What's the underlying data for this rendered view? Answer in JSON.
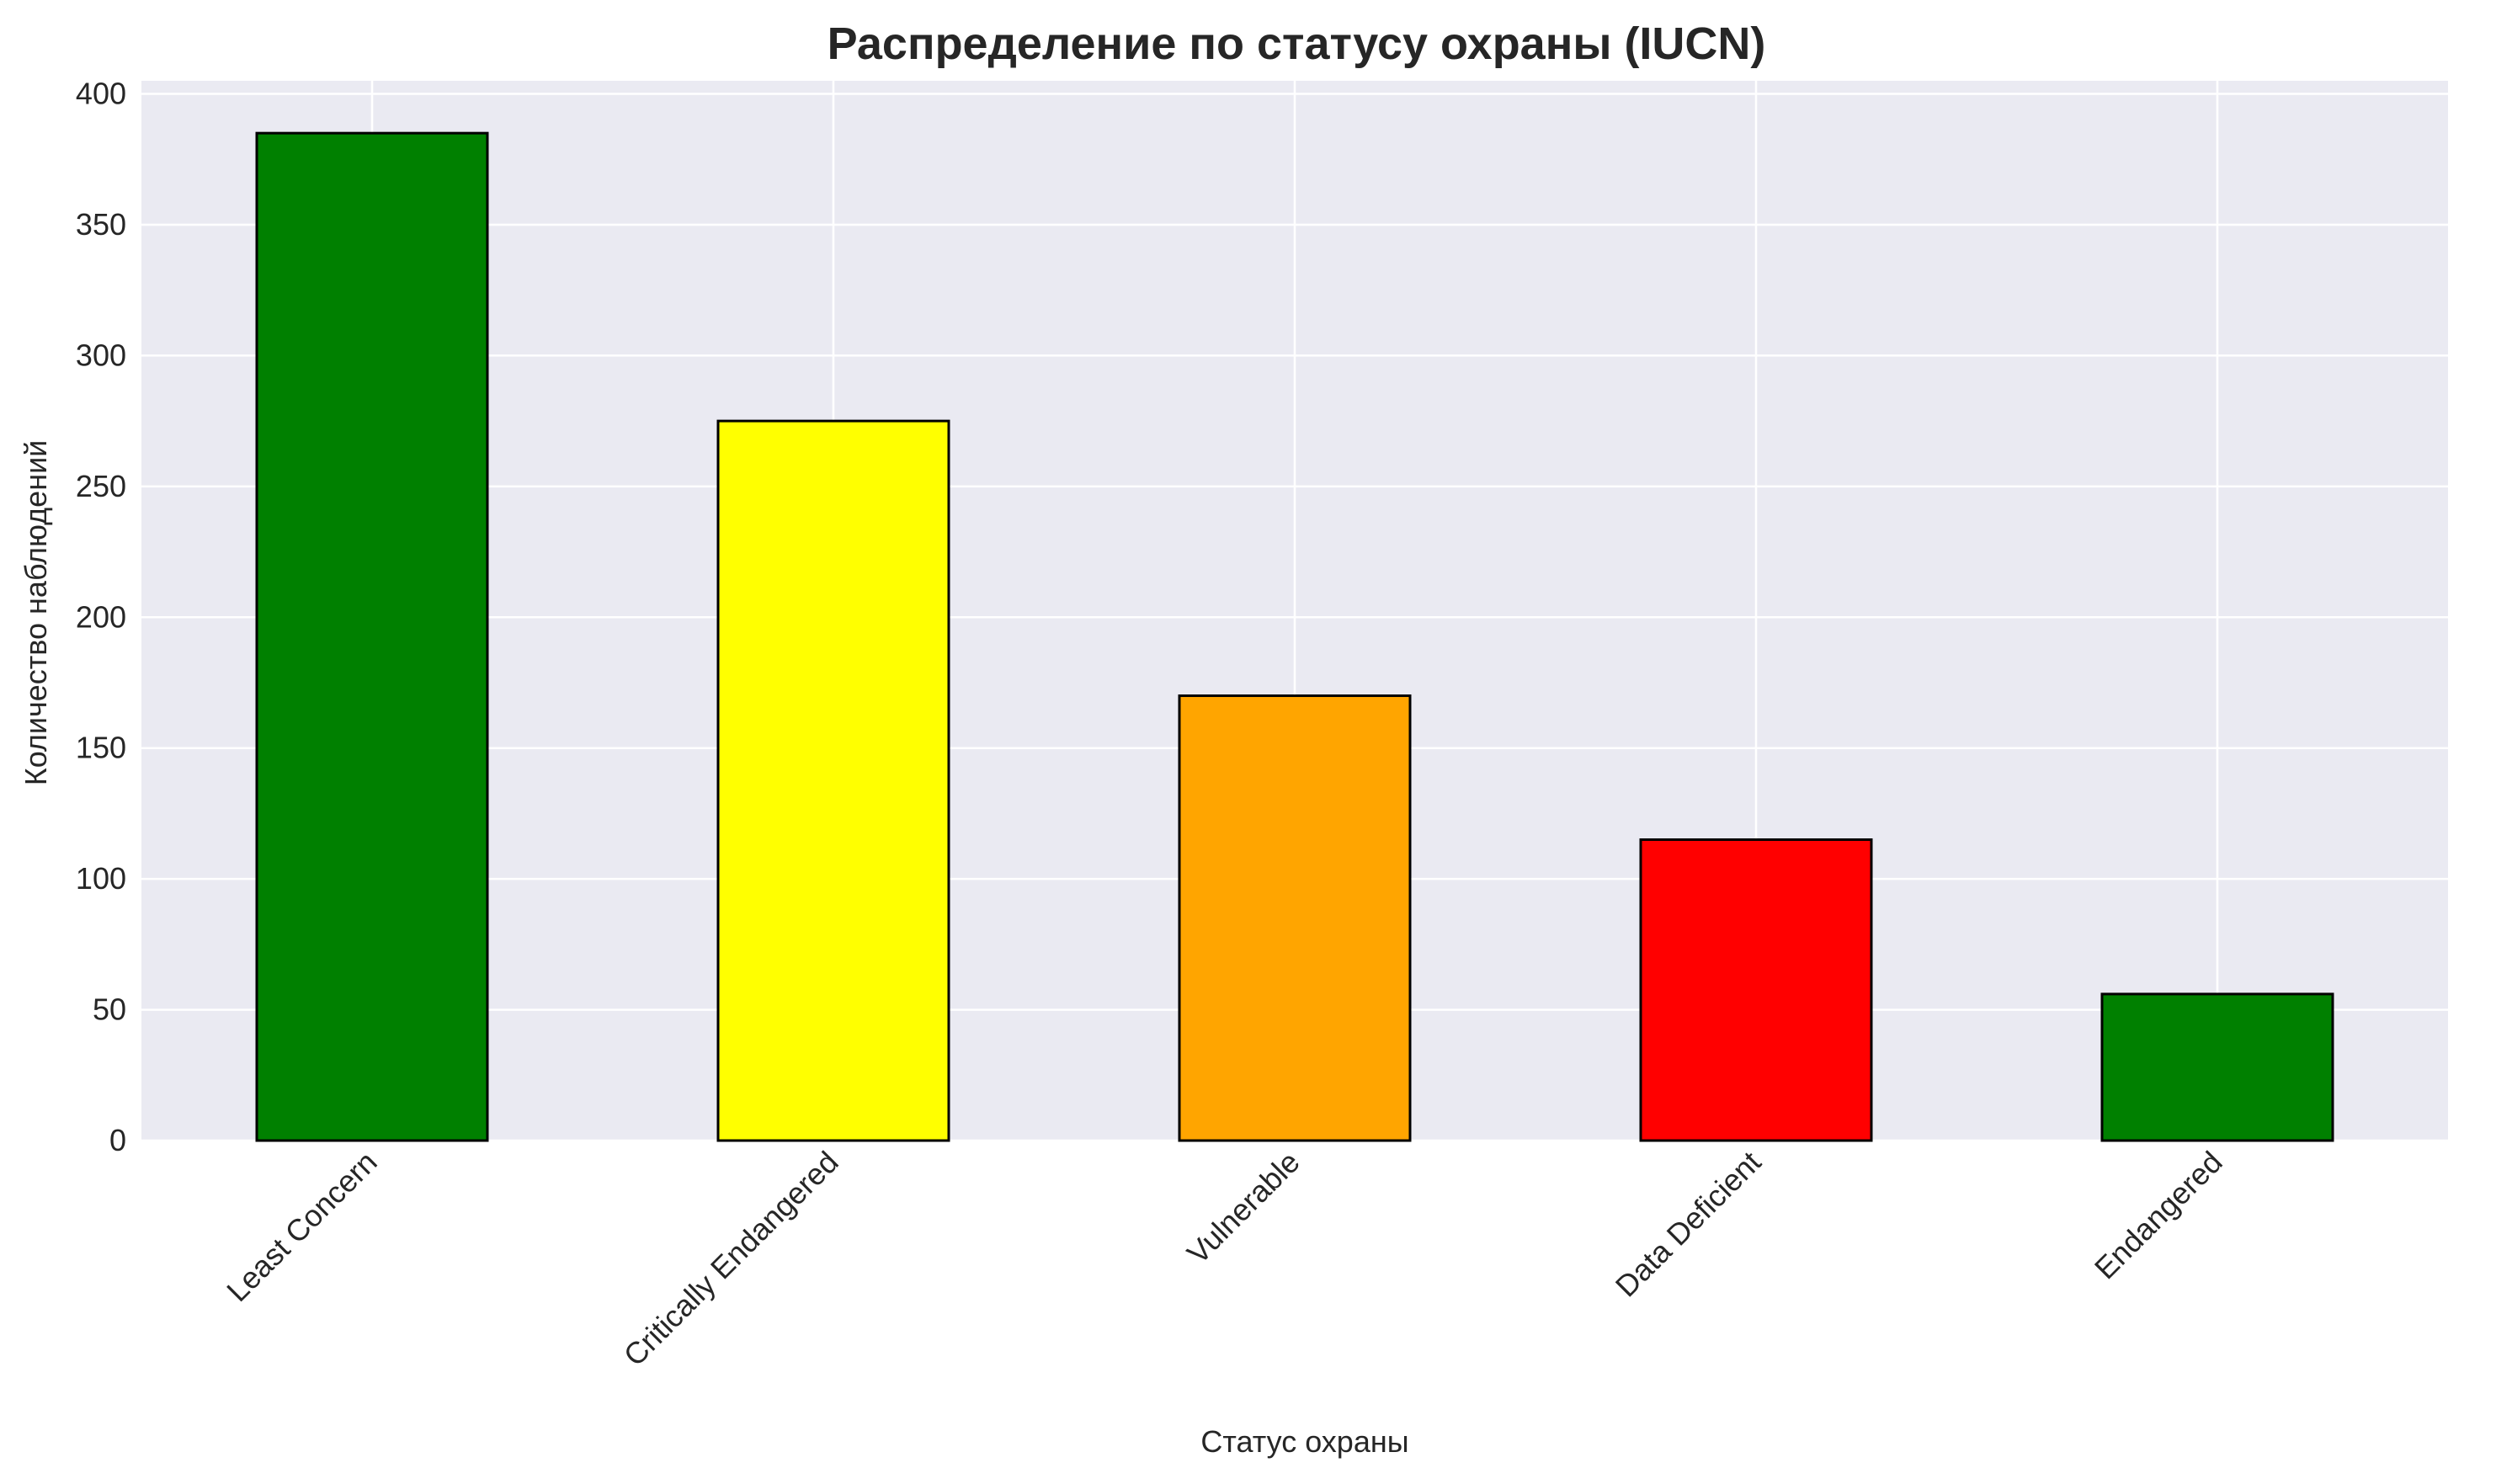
{
  "chart_data": {
    "type": "bar",
    "title": "Распределение по статусу охраны (IUCN)",
    "xlabel": "Статус охраны",
    "ylabel": "Количество наблюдений",
    "categories": [
      "Least Concern",
      "Critically Endangered",
      "Vulnerable",
      "Data Deficient",
      "Endangered"
    ],
    "values": [
      385,
      275,
      170,
      115,
      56
    ],
    "colors": [
      "#008000",
      "#ffff00",
      "#ffa500",
      "#ff0000",
      "#008000"
    ],
    "ylim": [
      0,
      405
    ],
    "yticks": [
      0,
      50,
      100,
      150,
      200,
      250,
      300,
      350,
      400
    ],
    "grid": true,
    "background": "#eaeaf2",
    "bar_edge_color": "#000000",
    "legend": "none"
  }
}
